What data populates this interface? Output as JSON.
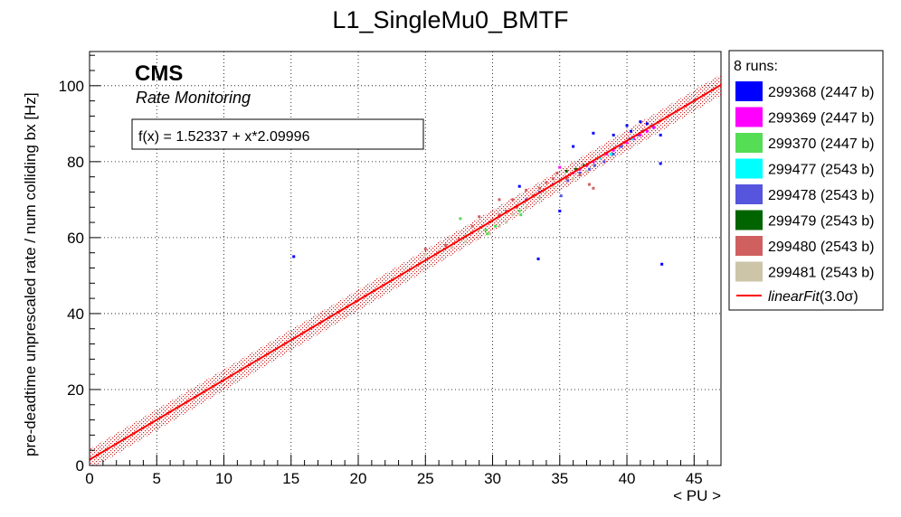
{
  "chart_data": {
    "type": "scatter",
    "title": "L1_SingleMu0_BMTF",
    "xlabel": "< PU >",
    "ylabel": "pre-deadtime unprescaled rate / num colliding bx [Hz]",
    "xlim": [
      0,
      47
    ],
    "ylim": [
      0,
      109
    ],
    "x_ticks": [
      0,
      5,
      10,
      15,
      20,
      25,
      30,
      35,
      40,
      45
    ],
    "y_ticks": [
      0,
      20,
      40,
      60,
      80,
      100
    ],
    "grid": true,
    "legend_position": "right",
    "cms_label": "CMS",
    "cms_sublabel": "Rate Monitoring",
    "fit": {
      "formula_text": "f(x) = 1.52337 + x*2.09996",
      "intercept": 1.52337,
      "slope": 2.09996,
      "band": 2.8,
      "color": "#ff0000"
    },
    "legend": {
      "header": "8 runs:",
      "fit_label": "linearFit",
      "fit_suffix": "(3.0σ)"
    },
    "series": [
      {
        "name": "299368 (2447 b)",
        "color": "#0000ff",
        "points": [
          [
            15.2,
            55
          ],
          [
            33.4,
            54.4
          ],
          [
            35.0,
            67
          ],
          [
            36.0,
            84
          ],
          [
            37.5,
            87.5
          ],
          [
            39.0,
            87
          ],
          [
            40.0,
            89.5
          ],
          [
            40.3,
            88
          ],
          [
            41.0,
            90.5
          ],
          [
            41.5,
            90
          ],
          [
            42.0,
            89
          ],
          [
            42.5,
            87
          ],
          [
            42.5,
            79.5
          ],
          [
            42.6,
            53
          ],
          [
            32.0,
            73.5
          ]
        ]
      },
      {
        "name": "299369 (2447 b)",
        "color": "#ff00ff",
        "points": [
          [
            35.0,
            78.5
          ],
          [
            35.5,
            76
          ],
          [
            36.0,
            77
          ],
          [
            36.5,
            78
          ],
          [
            37.0,
            79
          ],
          [
            37.5,
            80
          ],
          [
            38.0,
            81
          ],
          [
            38.5,
            82
          ],
          [
            39.0,
            83
          ],
          [
            39.5,
            84
          ],
          [
            40.0,
            85
          ],
          [
            40.5,
            86
          ],
          [
            41.0,
            87
          ],
          [
            41.5,
            88
          ],
          [
            42.0,
            89
          ]
        ]
      },
      {
        "name": "299370 (2447 b)",
        "color": "#55dd55",
        "points": [
          [
            27.6,
            65
          ],
          [
            29.5,
            62
          ],
          [
            29.6,
            61
          ],
          [
            30.2,
            63
          ],
          [
            32.0,
            67
          ],
          [
            32.1,
            66
          ]
        ]
      },
      {
        "name": "299477 (2543 b)",
        "color": "#00ffff",
        "points": [
          [
            38.0,
            81
          ],
          [
            38.8,
            82
          ],
          [
            39.6,
            84
          ],
          [
            40.4,
            86
          ]
        ]
      },
      {
        "name": "299478 (2543 b)",
        "color": "#5555dd",
        "points": [
          [
            32.5,
            70
          ],
          [
            33.5,
            72
          ],
          [
            34.5,
            74
          ],
          [
            35.1,
            71
          ],
          [
            35.6,
            75
          ],
          [
            36.5,
            77
          ],
          [
            37.2,
            78
          ],
          [
            37.6,
            79
          ],
          [
            38.3,
            80
          ],
          [
            39.0,
            82
          ],
          [
            39.6,
            84
          ],
          [
            40.2,
            86
          ],
          [
            40.8,
            87
          ],
          [
            41.2,
            88
          ],
          [
            41.9,
            89.5
          ]
        ]
      },
      {
        "name": "299479 (2543 b)",
        "color": "#006400",
        "points": [
          [
            35.5,
            77.5
          ],
          [
            36.2,
            78
          ],
          [
            36.8,
            79
          ]
        ]
      },
      {
        "name": "299480 (2543 b)",
        "color": "#d06060",
        "points": [
          [
            25.0,
            57
          ],
          [
            26.5,
            58
          ],
          [
            27.5,
            59.5
          ],
          [
            28.5,
            63
          ],
          [
            29.0,
            65.5
          ],
          [
            30.5,
            66
          ],
          [
            31.0,
            67
          ],
          [
            31.5,
            70
          ],
          [
            32.5,
            72.5
          ],
          [
            33.0,
            71
          ],
          [
            33.5,
            73
          ],
          [
            34.0,
            74.5
          ],
          [
            34.5,
            75.5
          ],
          [
            34.8,
            77
          ],
          [
            35.5,
            75.5
          ],
          [
            36.5,
            76.5
          ],
          [
            37.2,
            74
          ],
          [
            37.5,
            73
          ],
          [
            30.5,
            70
          ],
          [
            31.8,
            68
          ]
        ]
      },
      {
        "name": "299481 (2543 b)",
        "color": "#cdc5a8",
        "points": [
          [
            25.0,
            55.5
          ],
          [
            26.0,
            56.5
          ],
          [
            27.0,
            57.5
          ],
          [
            28.0,
            60.5
          ],
          [
            29.0,
            62
          ],
          [
            29.8,
            61
          ],
          [
            30.5,
            63
          ],
          [
            31.0,
            64
          ],
          [
            31.5,
            66
          ],
          [
            32.5,
            68
          ],
          [
            33.5,
            70.5
          ],
          [
            34.0,
            72
          ],
          [
            34.5,
            73.5
          ],
          [
            35.0,
            75
          ],
          [
            36.0,
            75.5
          ],
          [
            37.0,
            77.5
          ],
          [
            28.0,
            59
          ]
        ]
      }
    ]
  }
}
